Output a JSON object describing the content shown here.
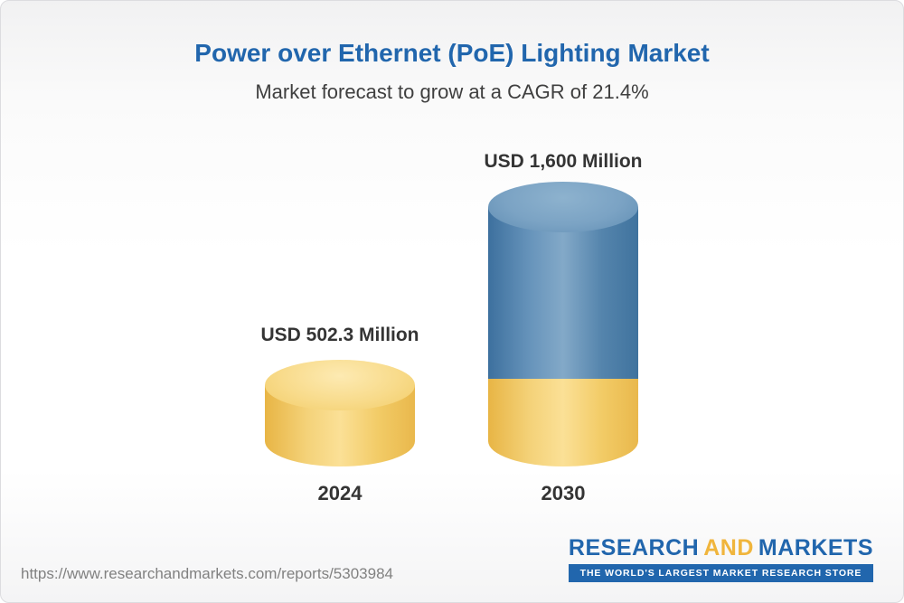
{
  "header": {
    "title": "Power over Ethernet (PoE) Lighting Market",
    "subtitle": "Market forecast to grow at a CAGR of 21.4%"
  },
  "chart_data": {
    "type": "bar",
    "bar_style": "3d-cylinder",
    "categories": [
      "2024",
      "2030"
    ],
    "values": [
      502.3,
      1600
    ],
    "unit": "USD Million",
    "value_labels": [
      "USD 502.3 Million",
      "USD 1,600 Million"
    ],
    "title": "Power over Ethernet (PoE) Lighting Market",
    "subtitle": "Market forecast to grow at a CAGR of 21.4%",
    "cagr": "21.4%",
    "ylim": [
      0,
      1600
    ],
    "grid": false,
    "legend": "none",
    "layout_note": "2030 cylinder shows a yellow base segment equal to the 2024 value with blue growth above it",
    "colors": {
      "bar_2024": "#f3cd6e",
      "bar_2030_top": "#4e80a9",
      "bar_2030_base": "#f3cd6e",
      "title_accent": "#2166ad",
      "label_text": "#343434"
    }
  },
  "footer": {
    "url": "https://www.researchandmarkets.com/reports/5303984",
    "logo": {
      "research": "RESEARCH",
      "and": "AND",
      "markets": "MARKETS",
      "tagline": "THE WORLD'S LARGEST MARKET RESEARCH STORE"
    }
  }
}
